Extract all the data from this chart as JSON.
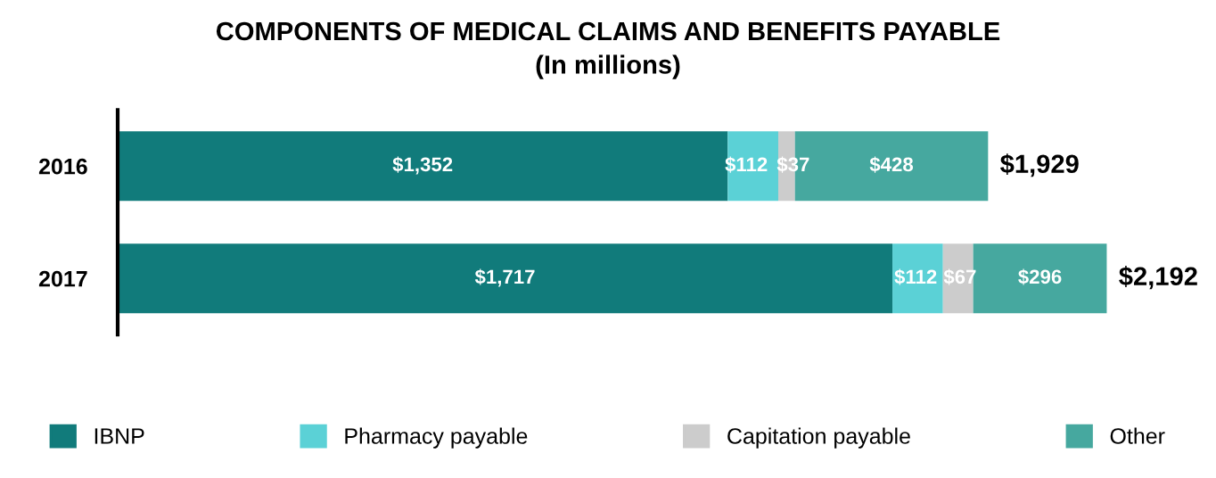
{
  "chart_data": {
    "type": "bar",
    "orientation": "horizontal",
    "stacked": true,
    "title": "COMPONENTS OF MEDICAL CLAIMS AND BENEFITS PAYABLE",
    "subtitle": "(In millions)",
    "categories": [
      "2016",
      "2017"
    ],
    "series": [
      {
        "name": "IBNP",
        "color": "#117b7b",
        "values": [
          1352,
          1717
        ],
        "value_labels": [
          "$1,352",
          "$1,717"
        ]
      },
      {
        "name": "Pharmacy payable",
        "color": "#5bd1d6",
        "values": [
          112,
          112
        ],
        "value_labels": [
          "$112",
          "$112"
        ]
      },
      {
        "name": "Capitation payable",
        "color": "#cccccc",
        "values": [
          37,
          67
        ],
        "value_labels": [
          "$37",
          "$67"
        ]
      },
      {
        "name": "Other",
        "color": "#46a89f",
        "values": [
          428,
          296
        ],
        "value_labels": [
          "$428",
          "$296"
        ]
      }
    ],
    "totals": [
      "$1,929",
      "$2,192"
    ],
    "legend": "bottom",
    "grid": false
  }
}
